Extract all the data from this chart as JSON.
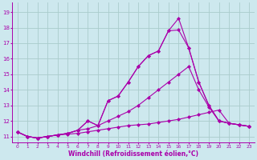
{
  "xlabel": "Windchill (Refroidissement éolien,°C)",
  "bg_color": "#cde8ee",
  "grid_color": "#aacccc",
  "line_color": "#aa00aa",
  "xlim": [
    -0.5,
    23.5
  ],
  "ylim": [
    10.6,
    19.6
  ],
  "xticks": [
    0,
    1,
    2,
    3,
    4,
    5,
    6,
    7,
    8,
    9,
    10,
    11,
    12,
    13,
    14,
    15,
    16,
    17,
    18,
    19,
    20,
    21,
    22,
    23
  ],
  "yticks": [
    11,
    12,
    13,
    14,
    15,
    16,
    17,
    18,
    19
  ],
  "series": [
    [
      11.3,
      11.0,
      10.9,
      11.0,
      11.1,
      11.15,
      11.2,
      11.3,
      11.4,
      11.5,
      11.6,
      11.7,
      11.75,
      11.8,
      11.9,
      12.0,
      12.1,
      12.25,
      12.4,
      12.55,
      12.7,
      11.85,
      11.75,
      11.65
    ],
    [
      11.3,
      11.0,
      10.9,
      11.0,
      11.1,
      11.2,
      11.4,
      11.5,
      11.7,
      12.0,
      12.3,
      12.6,
      13.0,
      13.5,
      14.0,
      14.5,
      15.0,
      15.5,
      14.0,
      12.9,
      12.0,
      11.85,
      11.75,
      11.65
    ],
    [
      11.3,
      11.0,
      10.9,
      11.0,
      11.1,
      11.2,
      11.4,
      12.0,
      11.7,
      13.3,
      13.6,
      14.5,
      15.5,
      16.2,
      16.5,
      17.8,
      17.85,
      16.7,
      14.5,
      13.0,
      12.0,
      11.85,
      11.75,
      11.65
    ],
    [
      11.3,
      11.0,
      10.9,
      11.0,
      11.1,
      11.2,
      11.4,
      12.0,
      11.7,
      13.3,
      13.6,
      14.5,
      15.5,
      16.2,
      16.5,
      17.8,
      18.6,
      16.7,
      14.5,
      13.0,
      12.0,
      11.85,
      11.75,
      11.65
    ]
  ],
  "label_fontsize": 5.5,
  "tick_fontsize": 5.0,
  "xlabel_fontsize": 5.5
}
